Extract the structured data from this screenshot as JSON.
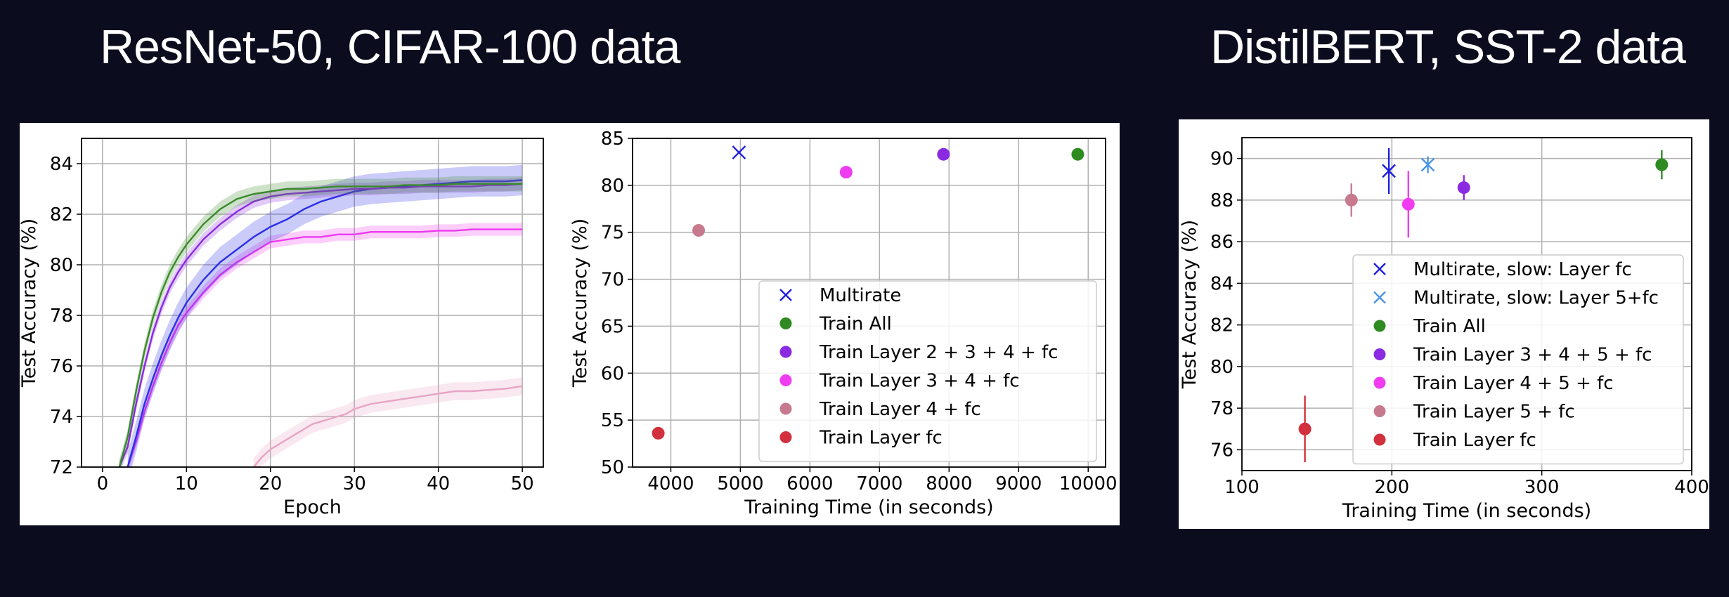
{
  "titles": {
    "left": "ResNet-50, CIFAR-100 data",
    "right": "DistilBERT, SST-2 data"
  },
  "chart_data": [
    {
      "type": "line",
      "xlabel": "Epoch",
      "ylabel": "Test Accuracy (%)",
      "xlim": [
        -2.5,
        52.5
      ],
      "ylim": [
        72,
        85
      ],
      "xticks": [
        0,
        10,
        20,
        30,
        40,
        50
      ],
      "yticks": [
        72,
        74,
        76,
        78,
        80,
        82,
        84
      ],
      "grid": true,
      "series": [
        {
          "color": "#e8a4c3",
          "x": [
            18,
            19,
            20,
            21,
            22,
            23,
            24,
            25,
            26,
            27,
            28,
            29,
            30,
            32,
            34,
            36,
            38,
            40,
            42,
            44,
            46,
            48,
            50
          ],
          "values": [
            72,
            72.4,
            72.7,
            72.9,
            73.1,
            73.3,
            73.5,
            73.7,
            73.8,
            73.9,
            74.0,
            74.1,
            74.3,
            74.5,
            74.6,
            74.7,
            74.8,
            74.9,
            75.0,
            75.0,
            75.05,
            75.1,
            75.2
          ],
          "band": 0.35
        },
        {
          "color": "#ee3aef",
          "x": [
            3,
            4,
            5,
            6,
            7,
            8,
            9,
            10,
            12,
            14,
            16,
            18,
            20,
            22,
            24,
            26,
            28,
            30,
            32,
            34,
            36,
            38,
            40,
            42,
            44,
            46,
            48,
            50
          ],
          "values": [
            72,
            73.0,
            74.2,
            75.2,
            76.1,
            76.9,
            77.6,
            78.1,
            78.9,
            79.6,
            80.1,
            80.5,
            80.9,
            81.0,
            81.1,
            81.1,
            81.2,
            81.2,
            81.3,
            81.3,
            81.3,
            81.3,
            81.35,
            81.35,
            81.4,
            81.4,
            81.4,
            81.4
          ],
          "band": 0.25
        },
        {
          "color": "#2a2ee8",
          "x": [
            3,
            4,
            5,
            6,
            7,
            8,
            9,
            10,
            12,
            14,
            16,
            18,
            20,
            22,
            24,
            26,
            28,
            30,
            32,
            34,
            36,
            38,
            40,
            42,
            44,
            46,
            48,
            50
          ],
          "values": [
            72,
            73.2,
            74.5,
            75.5,
            76.4,
            77.2,
            77.9,
            78.5,
            79.4,
            80.1,
            80.6,
            81.1,
            81.5,
            81.8,
            82.2,
            82.5,
            82.7,
            82.9,
            83.0,
            83.05,
            83.1,
            83.15,
            83.2,
            83.25,
            83.3,
            83.3,
            83.3,
            83.35
          ],
          "band": 0.6
        },
        {
          "color": "#8a2be2",
          "x": [
            2,
            3,
            4,
            5,
            6,
            7,
            8,
            9,
            10,
            12,
            14,
            16,
            18,
            20,
            22,
            24,
            26,
            28,
            30,
            32,
            34,
            36,
            38,
            40,
            42,
            44,
            46,
            48,
            50
          ],
          "values": [
            72,
            72.8,
            74.5,
            76.0,
            77.3,
            78.3,
            79.1,
            79.7,
            80.2,
            81.0,
            81.6,
            82.1,
            82.5,
            82.7,
            82.8,
            82.85,
            82.9,
            82.95,
            83.0,
            83.0,
            83.05,
            83.05,
            83.1,
            83.1,
            83.1,
            83.1,
            83.15,
            83.15,
            83.2
          ],
          "band": 0.25
        },
        {
          "color": "#3a8a2a",
          "x": [
            2,
            3,
            4,
            5,
            6,
            7,
            8,
            9,
            10,
            12,
            14,
            16,
            18,
            20,
            22,
            24,
            26,
            28,
            30,
            32,
            34,
            36,
            38,
            40,
            42,
            44,
            46,
            48,
            50
          ],
          "values": [
            72,
            73.2,
            75.0,
            76.6,
            77.9,
            78.9,
            79.7,
            80.3,
            80.8,
            81.6,
            82.2,
            82.6,
            82.8,
            82.9,
            83.0,
            83.0,
            83.05,
            83.1,
            83.1,
            83.1,
            83.1,
            83.15,
            83.15,
            83.15,
            83.2,
            83.2,
            83.2,
            83.2,
            83.2
          ],
          "band": 0.3
        }
      ]
    },
    {
      "type": "scatter",
      "xlabel": "Training Time (in seconds)",
      "ylabel": "Test Accuracy (%)",
      "xlim": [
        3450,
        10250
      ],
      "ylim": [
        50,
        85
      ],
      "xticks": [
        4000,
        5000,
        6000,
        7000,
        8000,
        9000,
        10000
      ],
      "yticks": [
        50,
        55,
        60,
        65,
        70,
        75,
        80,
        85
      ],
      "grid": true,
      "legend_position": "lower-right",
      "series": [
        {
          "name": "Multirate",
          "marker": "x",
          "color": "#1f1fe0",
          "x": [
            4980
          ],
          "values": [
            83.5
          ]
        },
        {
          "name": "Train All",
          "marker": "o",
          "color": "#2f8a22",
          "x": [
            9850
          ],
          "values": [
            83.3
          ]
        },
        {
          "name": "Train Layer 2 + 3 + 4 + fc",
          "marker": "o",
          "color": "#8a2be2",
          "x": [
            7920
          ],
          "values": [
            83.3
          ]
        },
        {
          "name": "Train Layer 3 + 4 + fc",
          "marker": "o",
          "color": "#f03cf0",
          "x": [
            6520
          ],
          "values": [
            81.4
          ]
        },
        {
          "name": "Train Layer 4 + fc",
          "marker": "o",
          "color": "#c77a8e",
          "x": [
            4400
          ],
          "values": [
            75.2
          ]
        },
        {
          "name": "Train Layer fc",
          "marker": "o",
          "color": "#d2303c",
          "x": [
            3820
          ],
          "values": [
            53.6
          ]
        }
      ]
    },
    {
      "type": "scatter",
      "xlabel": "Training Time (in seconds)",
      "ylabel": "Test Accuracy (%)",
      "xlim": [
        100,
        400
      ],
      "ylim": [
        75,
        91
      ],
      "xticks": [
        100,
        200,
        300,
        400
      ],
      "yticks": [
        76,
        78,
        80,
        82,
        84,
        86,
        88,
        90
      ],
      "grid": true,
      "legend_position": "lower-right",
      "series": [
        {
          "name": "Multirate, slow: Layer fc",
          "marker": "x",
          "color": "#1f1fe0",
          "x": [
            198
          ],
          "values": [
            89.4
          ],
          "err": [
            1.1
          ]
        },
        {
          "name": "Multirate, slow: Layer 5+fc",
          "marker": "x",
          "color": "#4a96e8",
          "x": [
            224
          ],
          "values": [
            89.7
          ],
          "err": [
            0.4
          ]
        },
        {
          "name": "Train All",
          "marker": "o",
          "color": "#2f8a22",
          "x": [
            380
          ],
          "values": [
            89.7
          ],
          "err": [
            0.7
          ]
        },
        {
          "name": "Train Layer 3 + 4 + 5 + fc",
          "marker": "o",
          "color": "#8a2be2",
          "x": [
            248
          ],
          "values": [
            88.6
          ],
          "err": [
            0.6
          ]
        },
        {
          "name": "Train Layer 4 + 5 + fc",
          "marker": "o",
          "color": "#f03cf0",
          "x": [
            211
          ],
          "values": [
            87.8
          ],
          "err": [
            1.6
          ]
        },
        {
          "name": "Train Layer 5 + fc",
          "marker": "o",
          "color": "#c77a8e",
          "x": [
            173
          ],
          "values": [
            88.0
          ],
          "err": [
            0.8
          ]
        },
        {
          "name": "Train Layer fc",
          "marker": "o",
          "color": "#d2303c",
          "x": [
            142
          ],
          "values": [
            77.0
          ],
          "err": [
            1.6
          ]
        }
      ]
    }
  ]
}
